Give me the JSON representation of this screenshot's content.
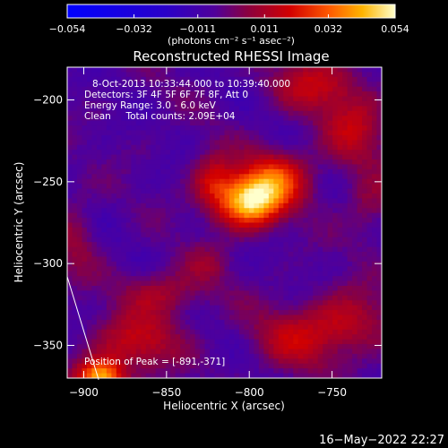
{
  "chart_data": {
    "type": "heatmap",
    "title": "Reconstructed RHESSI Image",
    "xlabel": "Heliocentric X (arcsec)",
    "ylabel": "Heliocentric Y (arcsec)",
    "xlim": [
      -910,
      -720
    ],
    "ylim": [
      -370,
      -180
    ],
    "x_ticks": [
      -900,
      -850,
      -800,
      -750
    ],
    "y_ticks": [
      -200,
      -250,
      -300,
      -350
    ],
    "colorbar": {
      "label": "(photons cm⁻² s⁻¹ asec⁻²)",
      "range": [
        -0.054,
        0.054
      ],
      "ticks": [
        -0.054,
        -0.032,
        -0.011,
        0.011,
        0.032,
        0.054
      ],
      "tick_labels": [
        "−0.054",
        "−0.032",
        "−0.011",
        "0.011",
        "0.032",
        "0.054"
      ]
    },
    "annotations": [
      "8-Oct-2013 10:33:44.000 to 10:39:40.000",
      "Detectors: 3F 4F 5F 6F 7F 8F, Att 0",
      "Energy Range: 3.0 - 6.0 keV",
      "Clean     Total counts: 2.09E+04"
    ],
    "peak_label": "Position of Peak = [-891,-371]",
    "peak": [
      -891,
      -371
    ],
    "sources": [
      {
        "x": -800,
        "y": -262,
        "sx": 13,
        "sy": 11,
        "value": 0.054
      },
      {
        "x": -783,
        "y": -248,
        "sx": 14,
        "sy": 12,
        "value": 0.03
      },
      {
        "x": -822,
        "y": -250,
        "sx": 9,
        "sy": 12,
        "value": 0.022
      },
      {
        "x": -890,
        "y": -370,
        "sx": 10,
        "sy": 8,
        "value": 0.05
      },
      {
        "x": -868,
        "y": -348,
        "sx": 18,
        "sy": 12,
        "value": 0.022
      },
      {
        "x": -852,
        "y": -318,
        "sx": 18,
        "sy": 10,
        "value": 0.017
      },
      {
        "x": -770,
        "y": -345,
        "sx": 20,
        "sy": 14,
        "value": 0.019
      },
      {
        "x": -738,
        "y": -335,
        "sx": 16,
        "sy": 14,
        "value": 0.017
      },
      {
        "x": -760,
        "y": -190,
        "sx": 18,
        "sy": 12,
        "value": 0.02
      },
      {
        "x": -736,
        "y": -218,
        "sx": 14,
        "sy": 16,
        "value": 0.019
      },
      {
        "x": -728,
        "y": -265,
        "sx": 10,
        "sy": 14,
        "value": 0.012
      },
      {
        "x": -905,
        "y": -285,
        "sx": 9,
        "sy": 18,
        "value": 0.011
      },
      {
        "x": -825,
        "y": -300,
        "sx": 10,
        "sy": 8,
        "value": 0.009
      }
    ]
  },
  "footer": {
    "date": "16−May−2022 22:27"
  }
}
